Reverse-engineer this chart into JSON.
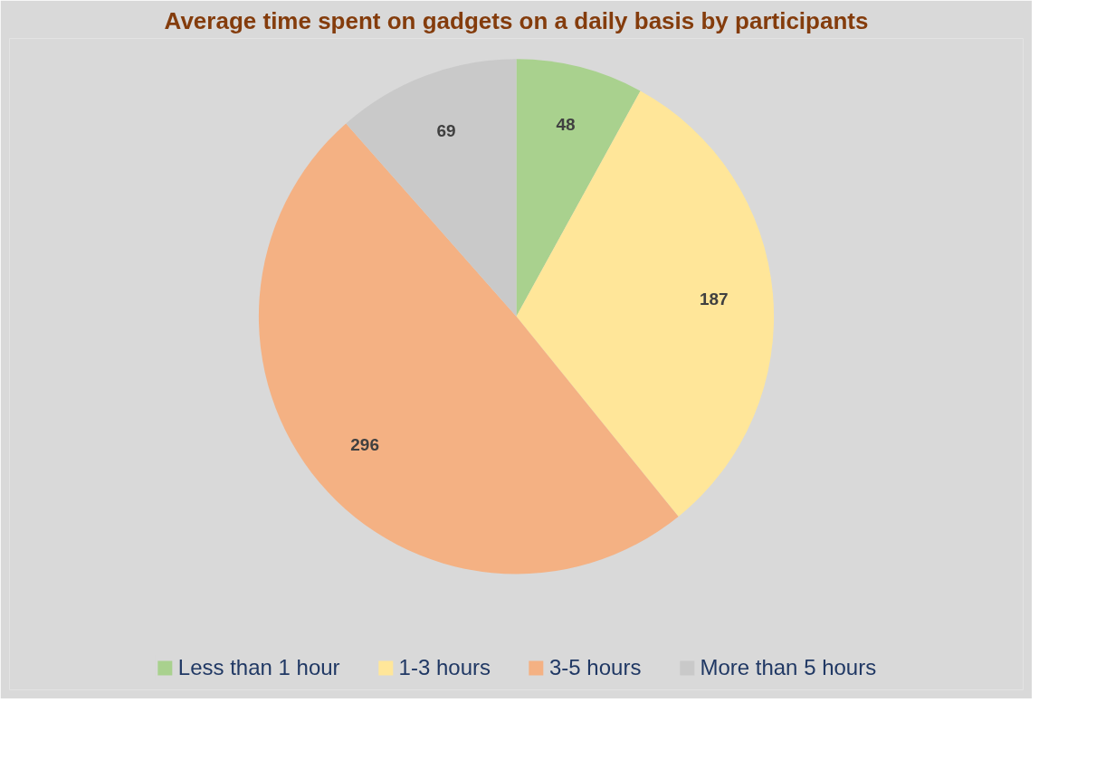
{
  "chart_data": {
    "type": "pie",
    "title": "Average time spent on gadgets on a daily basis by participants",
    "categories": [
      "Less than 1 hour",
      "1-3 hours",
      "3-5 hours",
      "More than 5 hours"
    ],
    "values": [
      48,
      187,
      296,
      69
    ],
    "colors": [
      "#a9d18e",
      "#ffe699",
      "#f4b183",
      "#c9c9c9"
    ],
    "data_labels": true,
    "legend": "bottom"
  }
}
